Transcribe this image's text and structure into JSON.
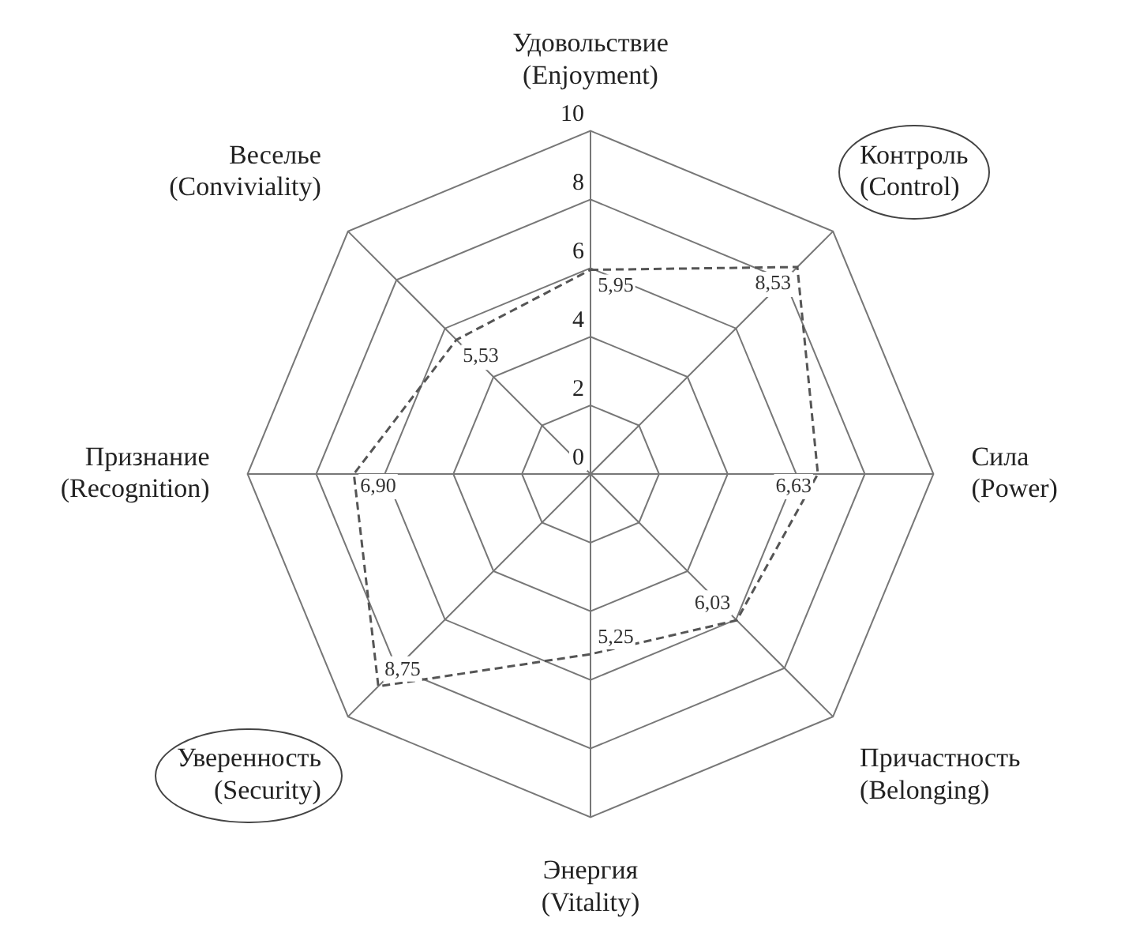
{
  "chart_data": {
    "type": "radar",
    "categories": [
      "Удовольствие\n(Enjoyment)",
      "Контроль\n(Control)",
      "Сила\n(Power)",
      "Причастность\n(Belonging)",
      "Энергия\n(Vitality)",
      "Уверенность\n(Security)",
      "Признание\n(Recognition)",
      "Веселье\n(Conviviality)"
    ],
    "series": [
      {
        "color": "#555555",
        "values": [
          5.95,
          8.53,
          6.63,
          6.03,
          5.25,
          8.75,
          6.9,
          5.53
        ],
        "value_labels": [
          "5,95",
          "8,53",
          "6,63",
          "6,03",
          "5,25",
          "8,75",
          "6,90",
          "5,53"
        ]
      }
    ],
    "ylim": [
      0,
      10
    ],
    "yticks": [
      0,
      2,
      4,
      6,
      8,
      10
    ],
    "grid": true,
    "legend": false,
    "marker": "none",
    "line_style": "dashed"
  }
}
